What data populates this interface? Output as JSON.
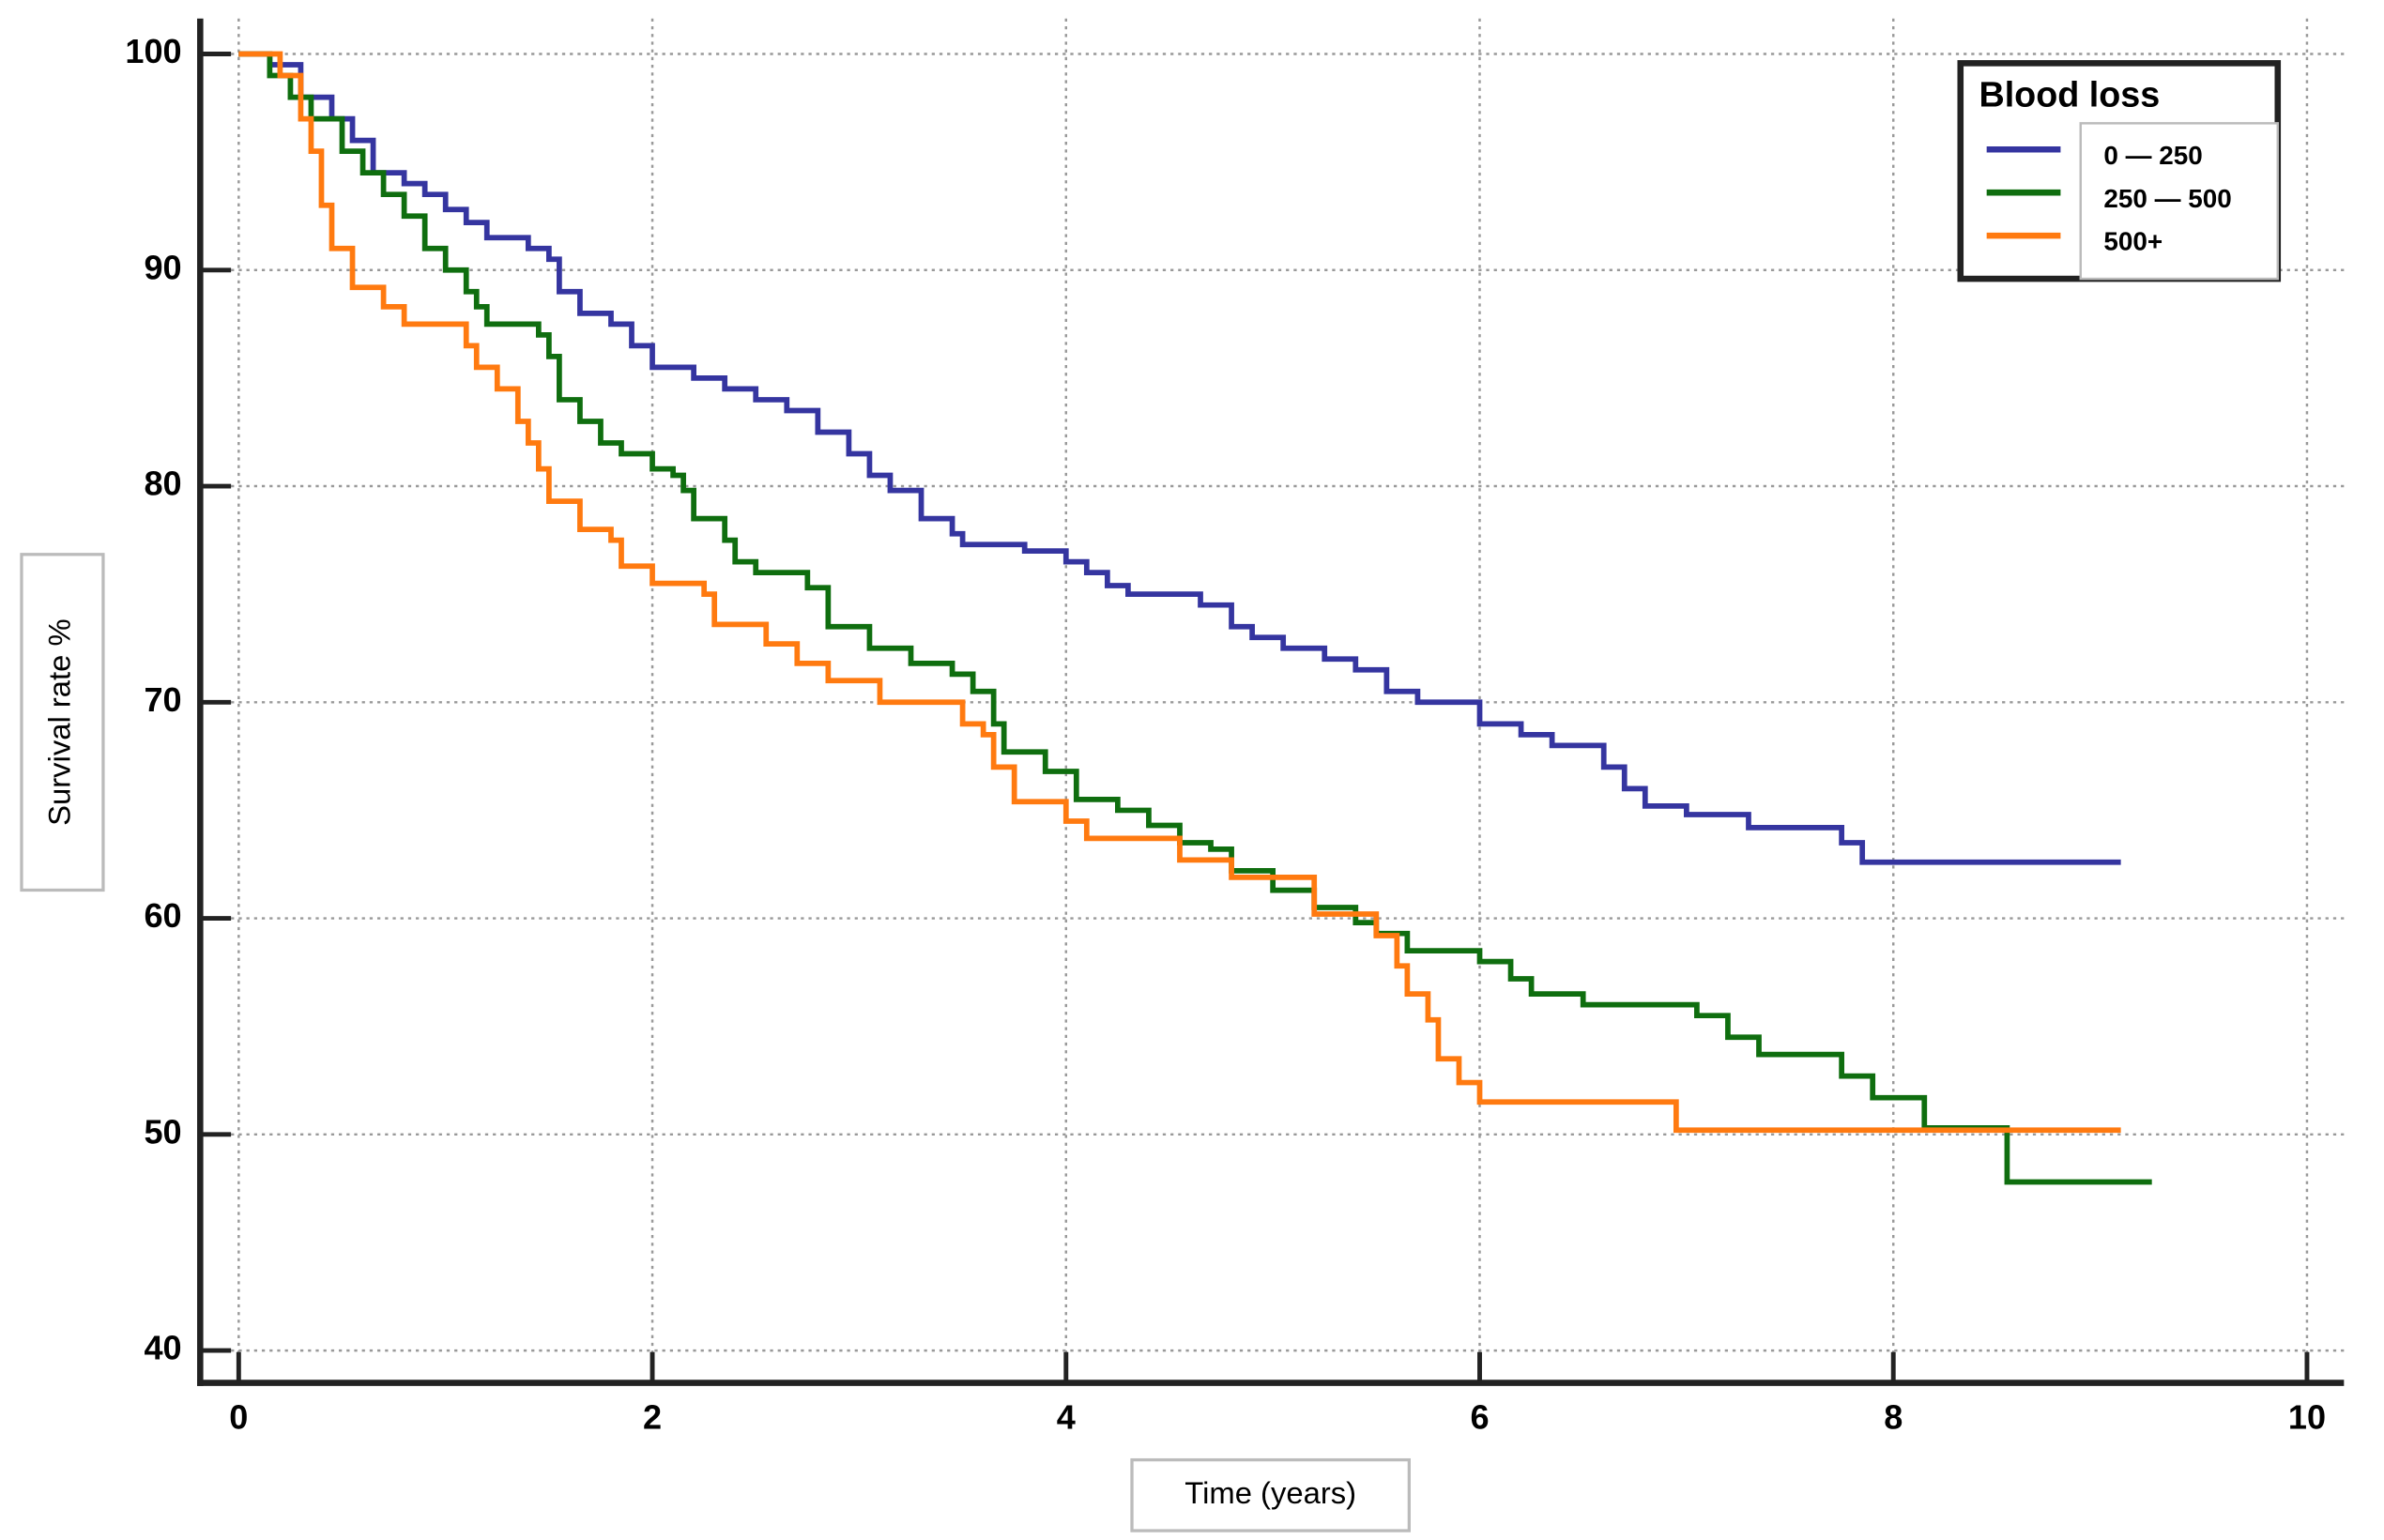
{
  "chart_data": {
    "type": "step",
    "x_label": "Time (years)",
    "y_label": "Survival rate %",
    "legend_title": "Blood loss",
    "legend": "top-right",
    "grid": true,
    "xlim": [
      0,
      10
    ],
    "xticks": [
      0,
      2,
      4,
      6,
      8,
      10
    ],
    "ylim": [
      40,
      100
    ],
    "yticks": [
      40,
      50,
      60,
      70,
      80,
      90,
      100
    ],
    "series": [
      {
        "name": "0 — 250",
        "color": "#3535a0",
        "x": [
          0,
          0.15,
          0.3,
          0.45,
          0.55,
          0.65,
          0.8,
          0.9,
          1.0,
          1.1,
          1.2,
          1.4,
          1.5,
          1.55,
          1.65,
          1.8,
          1.9,
          2.0,
          2.2,
          2.35,
          2.5,
          2.65,
          2.8,
          2.95,
          3.05,
          3.15,
          3.3,
          3.45,
          3.5,
          3.8,
          4.0,
          4.1,
          4.2,
          4.3,
          4.65,
          4.8,
          4.9,
          5.05,
          5.25,
          5.4,
          5.55,
          5.7,
          6.0,
          6.2,
          6.35,
          6.6,
          6.7,
          6.8,
          7.0,
          7.3,
          7.75,
          7.85,
          9.1
        ],
        "values": [
          100,
          99.5,
          98,
          97,
          96,
          94.5,
          94,
          93.5,
          92.8,
          92.2,
          91.5,
          91,
          90.5,
          89,
          88,
          87.5,
          86.5,
          85.5,
          85,
          84.5,
          84,
          83.5,
          82.5,
          81.5,
          80.5,
          79.8,
          78.5,
          77.8,
          77.3,
          77,
          76.5,
          76,
          75.4,
          75,
          74.5,
          73.5,
          73,
          72.5,
          72,
          71.5,
          70.5,
          70,
          69,
          68.5,
          68,
          67,
          66,
          65.2,
          64.8,
          64.2,
          63.5,
          62.6,
          62.6
        ]
      },
      {
        "name": "250 — 500",
        "color": "#0f6e0f",
        "x": [
          0,
          0.15,
          0.25,
          0.35,
          0.5,
          0.6,
          0.7,
          0.8,
          0.9,
          1.0,
          1.1,
          1.15,
          1.2,
          1.45,
          1.5,
          1.55,
          1.65,
          1.75,
          1.85,
          2.0,
          2.1,
          2.15,
          2.2,
          2.35,
          2.4,
          2.5,
          2.75,
          2.85,
          3.05,
          3.25,
          3.45,
          3.55,
          3.65,
          3.7,
          3.9,
          4.05,
          4.25,
          4.4,
          4.55,
          4.7,
          4.8,
          5.0,
          5.2,
          5.4,
          5.5,
          5.65,
          6.0,
          6.15,
          6.25,
          6.5,
          7.05,
          7.2,
          7.35,
          7.75,
          7.9,
          8.15,
          8.55,
          9.25
        ],
        "values": [
          100,
          99,
          98,
          97,
          95.5,
          94.5,
          93.5,
          92.5,
          91,
          90,
          89,
          88.3,
          87.5,
          87,
          86,
          84,
          83,
          82,
          81.5,
          80.8,
          80.5,
          79.8,
          78.5,
          77.5,
          76.5,
          76,
          75.3,
          73.5,
          72.5,
          71.8,
          71.3,
          70.5,
          69,
          67.7,
          66.8,
          65.5,
          65,
          64.3,
          63.5,
          63.2,
          62.2,
          61.3,
          60.5,
          59.8,
          59.3,
          58.5,
          58,
          57.2,
          56.5,
          56,
          55.5,
          54.5,
          53.7,
          52.7,
          51.7,
          50.3,
          47.8,
          47.8
        ]
      },
      {
        "name": "500+",
        "color": "#ff7a10",
        "x": [
          0,
          0.2,
          0.3,
          0.35,
          0.4,
          0.45,
          0.55,
          0.7,
          0.8,
          1.1,
          1.15,
          1.25,
          1.35,
          1.4,
          1.45,
          1.5,
          1.65,
          1.8,
          1.85,
          2.0,
          2.25,
          2.3,
          2.55,
          2.7,
          2.85,
          3.1,
          3.5,
          3.6,
          3.65,
          3.75,
          4.0,
          4.1,
          4.55,
          4.8,
          5.2,
          5.5,
          5.6,
          5.65,
          5.75,
          5.8,
          5.9,
          6.0,
          6.95,
          9.1
        ],
        "values": [
          100,
          99,
          97,
          95.5,
          93,
          91,
          89.2,
          88.3,
          87.5,
          86.5,
          85.5,
          84.5,
          83,
          82,
          80.8,
          79.3,
          78,
          77.5,
          76.3,
          75.5,
          75,
          73.6,
          72.7,
          71.8,
          71,
          70,
          69,
          68.5,
          67,
          65.4,
          64.5,
          63.7,
          62.7,
          61.9,
          60.2,
          59.2,
          57.8,
          56.5,
          55.3,
          53.5,
          52.4,
          51.5,
          50.2,
          50.2
        ]
      }
    ]
  }
}
